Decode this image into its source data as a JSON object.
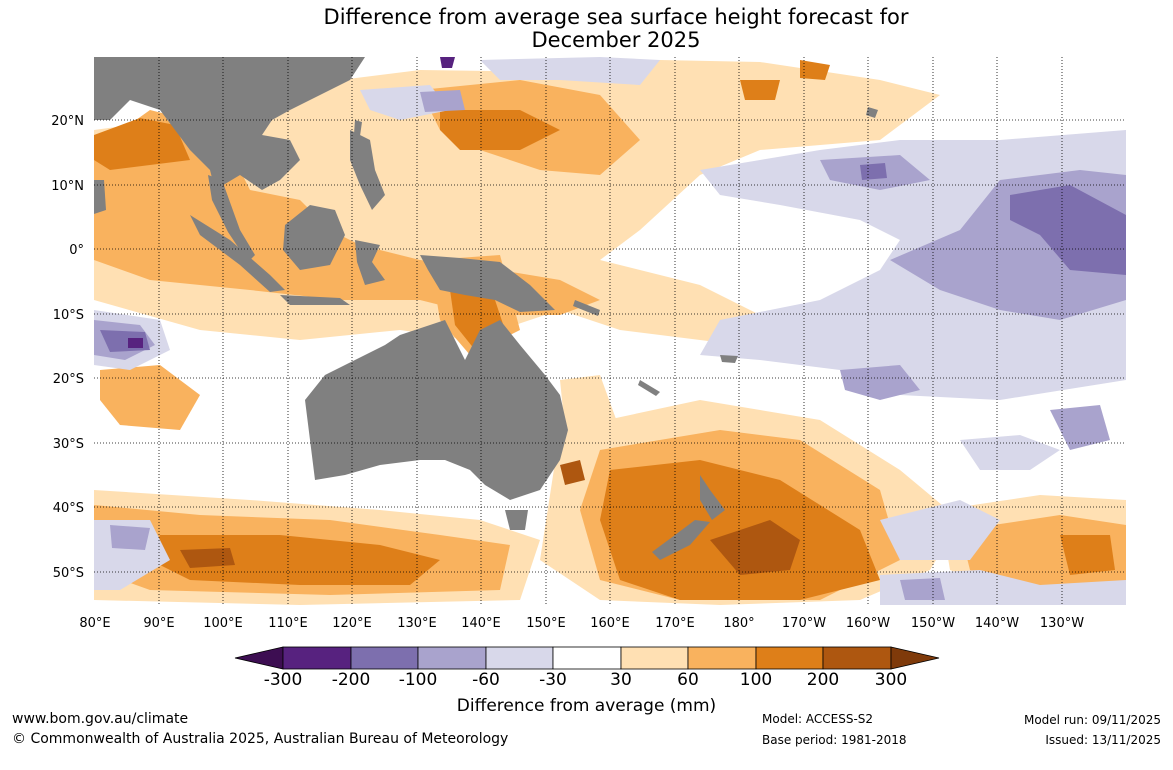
{
  "title_line1": "Difference from average sea surface height forecast for",
  "title_line2": "December 2025",
  "lon_labels": [
    "80°E",
    "90°E",
    "100°E",
    "110°E",
    "120°E",
    "130°E",
    "140°E",
    "150°E",
    "160°E",
    "170°E",
    "180°",
    "170°W",
    "160°W",
    "150°W",
    "140°W",
    "130°W"
  ],
  "lat_labels": [
    "20°N",
    "10°N",
    "0°",
    "10°S",
    "20°S",
    "30°S",
    "40°S",
    "50°S"
  ],
  "colorbar": {
    "label": "Difference from average (mm)",
    "ticks": [
      "-300",
      "-200",
      "-100",
      "-60",
      "-30",
      "30",
      "60",
      "100",
      "200",
      "300"
    ],
    "colors": [
      "#3d0e52",
      "#57227f",
      "#7d6fae",
      "#a9a3cd",
      "#d8d8ea",
      "#ffffff",
      "#ffe0b3",
      "#f9b25e",
      "#de7f19",
      "#ae5710",
      "#7f3a0a"
    ]
  },
  "colors": {
    "land": "#808080",
    "ocean": "#ffffff"
  },
  "footer": {
    "url": "www.bom.gov.au/climate",
    "copyright": "© Commonwealth of Australia 2025, Australian Bureau of Meteorology",
    "model": "Model: ACCESS-S2",
    "base_period": "Base period: 1981-2018",
    "model_run": "Model run: 09/11/2025",
    "issued": "Issued: 13/11/2025"
  }
}
